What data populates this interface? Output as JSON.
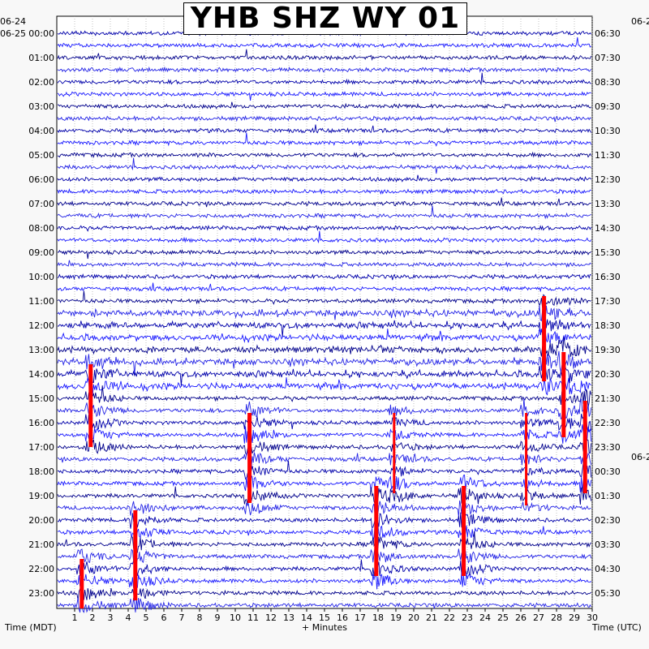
{
  "chart_data": {
    "type": "line",
    "title": "YHB SHZ WY 01",
    "xlabel": "+ Minutes",
    "left_axis_title": "Time (MDT)",
    "right_axis_title": "Time (UTC)",
    "left_date_top": "06-24",
    "left_date_second": "06-25",
    "right_date_mid": "06-2",
    "right_date_top": "06-2",
    "xlim": [
      0,
      30
    ],
    "x_ticks": [
      "1",
      "2",
      "3",
      "4",
      "5",
      "6",
      "7",
      "8",
      "9",
      "10",
      "11",
      "12",
      "13",
      "14",
      "15",
      "16",
      "17",
      "18",
      "19",
      "20",
      "21",
      "22",
      "23",
      "24",
      "25",
      "26",
      "27",
      "28",
      "29",
      "30"
    ],
    "left_hour_labels": [
      "00:00",
      "01:00",
      "02:00",
      "03:00",
      "04:00",
      "05:00",
      "06:00",
      "07:00",
      "08:00",
      "09:00",
      "10:00",
      "11:00",
      "12:00",
      "13:00",
      "14:00",
      "15:00",
      "16:00",
      "17:00",
      "18:00",
      "19:00",
      "20:00",
      "21:00",
      "22:00",
      "23:00"
    ],
    "right_hour_labels": [
      "06:30",
      "07:30",
      "08:30",
      "09:30",
      "10:30",
      "11:30",
      "12:30",
      "13:30",
      "14:30",
      "15:30",
      "16:30",
      "17:30",
      "18:30",
      "19:30",
      "20:30",
      "21:30",
      "22:30",
      "23:30",
      "00:30",
      "01:30",
      "02:30",
      "03:30",
      "04:30",
      "05:30"
    ],
    "traces_per_hour": 2,
    "trace_colors": [
      "#0000aa",
      "#1a1aff",
      "#00008b",
      "#2424e6"
    ],
    "clip_color": "#ff0000",
    "grid": true,
    "events": [
      {
        "minute": 27.3,
        "start_hour": 11.0,
        "end_hour": 14.3,
        "intensity": "high"
      },
      {
        "minute": 28.4,
        "start_hour": 13.3,
        "end_hour": 16.6,
        "intensity": "high"
      },
      {
        "minute": 1.9,
        "start_hour": 13.8,
        "end_hour": 17.0,
        "intensity": "high"
      },
      {
        "minute": 10.8,
        "start_hour": 15.8,
        "end_hour": 19.3,
        "intensity": "high"
      },
      {
        "minute": 18.9,
        "start_hour": 15.8,
        "end_hour": 18.9,
        "intensity": "medium"
      },
      {
        "minute": 26.3,
        "start_hour": 15.8,
        "end_hour": 19.4,
        "intensity": "medium"
      },
      {
        "minute": 29.6,
        "start_hour": 15.3,
        "end_hour": 18.9,
        "intensity": "high"
      },
      {
        "minute": 17.9,
        "start_hour": 18.8,
        "end_hour": 22.3,
        "intensity": "high"
      },
      {
        "minute": 22.8,
        "start_hour": 18.8,
        "end_hour": 22.3,
        "intensity": "high"
      },
      {
        "minute": 4.4,
        "start_hour": 19.8,
        "end_hour": 23.3,
        "intensity": "high"
      },
      {
        "minute": 1.4,
        "start_hour": 21.8,
        "end_hour": 23.8,
        "intensity": "high"
      }
    ]
  },
  "axis_labels": {
    "bottom_left": "Time (MDT)",
    "bottom_center": "+ Minutes",
    "bottom_right": "Time (UTC)"
  }
}
